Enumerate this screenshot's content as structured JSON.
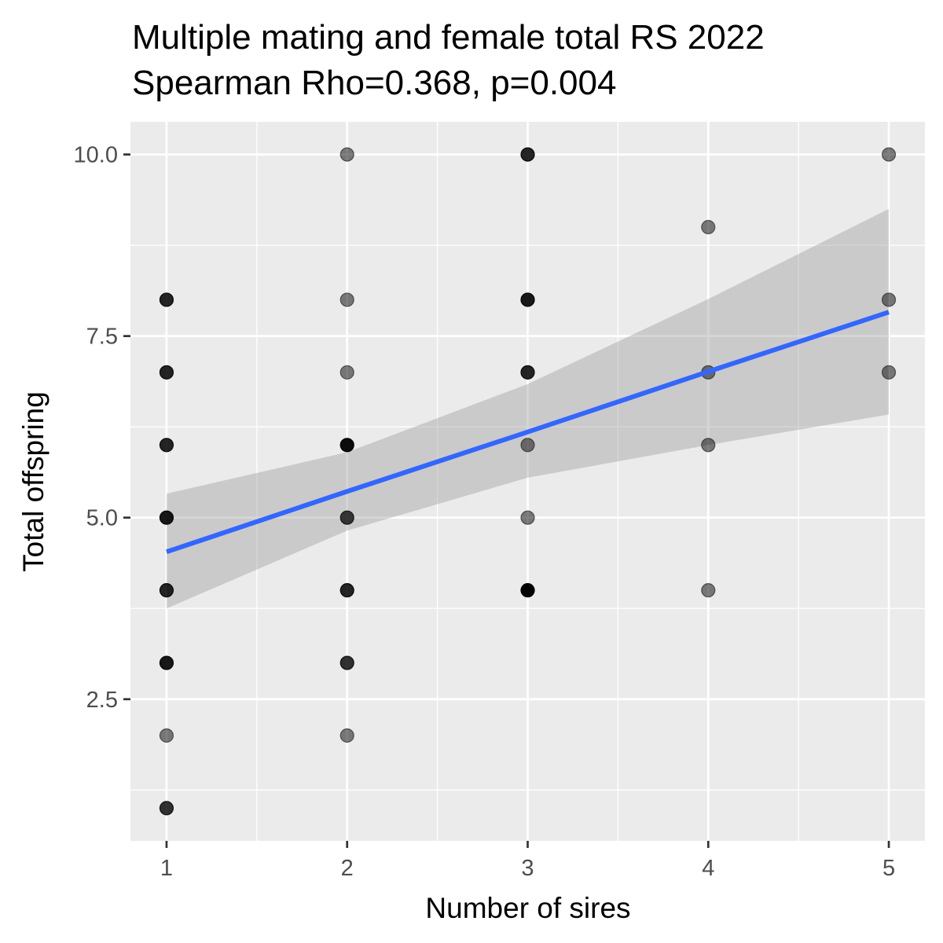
{
  "chart_data": {
    "type": "scatter",
    "title": "Multiple mating and female total RS 2022",
    "subtitle": "Spearman Rho=0.368, p=0.004",
    "xlabel": "Number of sires",
    "ylabel": "Total offspring",
    "xlim": [
      0.8,
      5.2
    ],
    "ylim": [
      0.55,
      10.45
    ],
    "x_ticks": [
      1,
      2,
      3,
      4,
      5
    ],
    "x_tick_labels": [
      "1",
      "2",
      "3",
      "4",
      "5"
    ],
    "y_ticks": [
      2.5,
      5.0,
      7.5,
      10.0
    ],
    "y_tick_labels": [
      "2.5",
      "5.0",
      "7.5",
      "10.0"
    ],
    "grid": true,
    "points": [
      {
        "x": 1,
        "y": 8,
        "alpha": 0.85
      },
      {
        "x": 1,
        "y": 7,
        "alpha": 0.85
      },
      {
        "x": 1,
        "y": 6,
        "alpha": 0.85
      },
      {
        "x": 1,
        "y": 5,
        "alpha": 0.9
      },
      {
        "x": 1,
        "y": 4,
        "alpha": 0.85
      },
      {
        "x": 1,
        "y": 3,
        "alpha": 0.9
      },
      {
        "x": 1,
        "y": 2,
        "alpha": 0.5
      },
      {
        "x": 1,
        "y": 1,
        "alpha": 0.8
      },
      {
        "x": 2,
        "y": 10,
        "alpha": 0.5
      },
      {
        "x": 2,
        "y": 8,
        "alpha": 0.5
      },
      {
        "x": 2,
        "y": 7,
        "alpha": 0.5
      },
      {
        "x": 2,
        "y": 6,
        "alpha": 0.95
      },
      {
        "x": 2,
        "y": 5,
        "alpha": 0.75
      },
      {
        "x": 2,
        "y": 4,
        "alpha": 0.85
      },
      {
        "x": 2,
        "y": 3,
        "alpha": 0.8
      },
      {
        "x": 2,
        "y": 2,
        "alpha": 0.5
      },
      {
        "x": 3,
        "y": 10,
        "alpha": 0.85
      },
      {
        "x": 3,
        "y": 8,
        "alpha": 0.9
      },
      {
        "x": 3,
        "y": 7,
        "alpha": 0.85
      },
      {
        "x": 3,
        "y": 6,
        "alpha": 0.5
      },
      {
        "x": 3,
        "y": 5,
        "alpha": 0.5
      },
      {
        "x": 3,
        "y": 4,
        "alpha": 1.0
      },
      {
        "x": 4,
        "y": 9,
        "alpha": 0.5
      },
      {
        "x": 4,
        "y": 7,
        "alpha": 0.5
      },
      {
        "x": 4,
        "y": 6,
        "alpha": 0.5
      },
      {
        "x": 4,
        "y": 4,
        "alpha": 0.5
      },
      {
        "x": 5,
        "y": 10,
        "alpha": 0.5
      },
      {
        "x": 5,
        "y": 8,
        "alpha": 0.5
      },
      {
        "x": 5,
        "y": 7,
        "alpha": 0.5
      }
    ],
    "regression": {
      "method": "lm",
      "line_color": "#3366ff",
      "band_color": "#999999",
      "x": [
        1,
        2,
        3,
        4,
        5
      ],
      "y": [
        4.53,
        5.36,
        6.18,
        7.01,
        7.83
      ],
      "lower": [
        3.75,
        4.82,
        5.55,
        6.0,
        6.42
      ],
      "upper": [
        5.33,
        5.9,
        6.84,
        8.01,
        9.25
      ]
    },
    "colors": {
      "panel_background": "#ebebeb",
      "grid_major": "#ffffff",
      "point_fill": "#000000"
    }
  }
}
